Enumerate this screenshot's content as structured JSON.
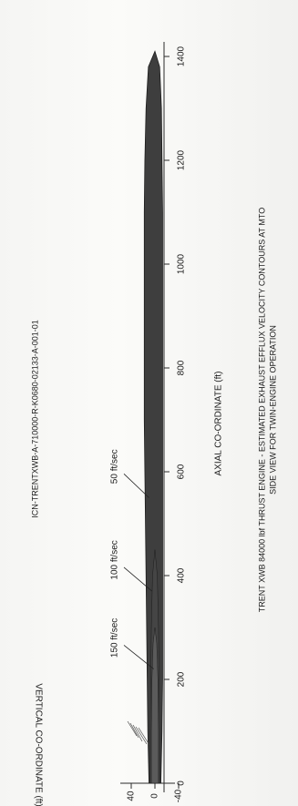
{
  "figure_id": "ICN-TRENTXWB-A-710000-R-K0680-02133-A-001-01",
  "caption": {
    "line1": "TRENT XWB 84000 lbf THRUST ENGINE - ESTIMATED EXHAUST EFFLUX VELOCITY CONTOURS AT MTO",
    "line2": "SIDE VIEW FOR TWIN-ENGINE OPERATION"
  },
  "chart_data": {
    "type": "area",
    "xlabel": "AXIAL CO-ORDINATE (ft)",
    "ylabel": "VERTICAL CO-ORDINATE (ft)",
    "xlim": [
      0,
      1500
    ],
    "ylim": [
      -40,
      40
    ],
    "x_ticks": [
      0,
      200,
      400,
      600,
      800,
      1000,
      1200,
      1400
    ],
    "y_ticks": [
      -40,
      0,
      40
    ],
    "grid": false,
    "series": [
      {
        "name": "50 ft/sec",
        "x": [
          0,
          100,
          200,
          300,
          400,
          500,
          600,
          700,
          800,
          900,
          1000,
          1100,
          1200,
          1300,
          1380,
          1410
        ],
        "y_upper": [
          10,
          12,
          13,
          14,
          15,
          16,
          17,
          18,
          18,
          18,
          18,
          18,
          17,
          15,
          11,
          0
        ],
        "y_lower": [
          -10,
          -12,
          -13,
          -13,
          -13,
          -13,
          -13,
          -13,
          -13,
          -13,
          -13,
          -13,
          -12,
          -11,
          -8,
          0
        ]
      },
      {
        "name": "100 ft/sec",
        "x": [
          0,
          100,
          200,
          300,
          400,
          450
        ],
        "y_upper": [
          8,
          8,
          7,
          6,
          4,
          0
        ],
        "y_lower": [
          -8,
          -8,
          -7,
          -6,
          -4,
          0
        ]
      },
      {
        "name": "150 ft/sec",
        "x": [
          0,
          100,
          200,
          270,
          300
        ],
        "y_upper": [
          6,
          6,
          5,
          3,
          0
        ],
        "y_lower": [
          -6,
          -6,
          -5,
          -3,
          0
        ]
      }
    ],
    "annotations": [
      {
        "text": "50 ft/sec",
        "x": 610,
        "y": 10
      },
      {
        "text": "100 ft/sec",
        "x": 430,
        "y": 5
      },
      {
        "text": "150 ft/sec",
        "x": 280,
        "y": 2
      }
    ]
  }
}
